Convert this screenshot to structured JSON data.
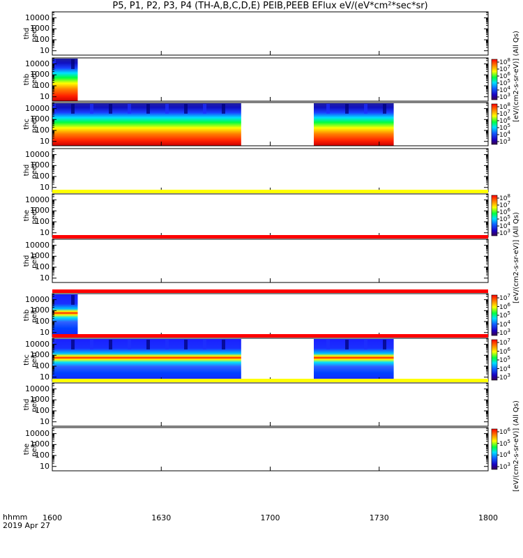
{
  "title": "P5, P1, P2, P3, P4 (TH-A,B,C,D,E) PEIB,PEEB EFlux eV/(eV*cm²*sec*sr)",
  "corner": {
    "line1": "hhmm",
    "line2": "2019 Apr 27"
  },
  "chart_data": {
    "type": "heatmap",
    "x_axis": {
      "ticks": [
        "1600",
        "1630",
        "1700",
        "1730",
        "1800"
      ],
      "range_hhmm": [
        "1600",
        "1800"
      ]
    },
    "y_axis": {
      "scale": "log",
      "ticks": [
        "10000",
        "1000",
        "100",
        "10"
      ]
    },
    "panels": [
      {
        "id": "thd_peeb",
        "label_probe": "thd",
        "label_product": "peeb",
        "data": [],
        "flag_bar": null,
        "cbar": null,
        "units_label": "eV/(cm2-s-sr-eV) (All Qs)"
      },
      {
        "id": "thb_peeb",
        "label_probe": "thb",
        "label_product": "peeb",
        "data": [
          {
            "start": "1600",
            "end": "1607",
            "profile": "electron"
          }
        ],
        "flag_bar": null,
        "cbar": {
          "exponents": [
            "8",
            "7",
            "6",
            "5",
            "4",
            "3"
          ]
        },
        "units_label": "eV/(cm2-s-sr-eV) (All Qs)"
      },
      {
        "id": "thc_peeb",
        "label_probe": "thc",
        "label_product": "peeb",
        "data": [
          {
            "start": "1600",
            "end": "1652",
            "profile": "electron"
          },
          {
            "start": "1712",
            "end": "1734",
            "profile": "electron"
          }
        ],
        "flag_bar": null,
        "cbar": {
          "exponents": [
            "8",
            "7",
            "6",
            "5",
            "4",
            "3"
          ]
        },
        "units_label": "eV/(cm2-s-sr-eV) (All Qs)"
      },
      {
        "id": "thd_peeb_2",
        "label_probe": "thd",
        "label_product": "peeb",
        "data": [],
        "flag_bar": null,
        "cbar": null,
        "units_label": "eV/(cm2-s-sr-eV) (All Qs)"
      },
      {
        "id": "the_peeb",
        "label_probe": "the",
        "label_product": "peeb",
        "data": [],
        "flag_bar": "yellow",
        "cbar": {
          "exponents": [
            "8",
            "7",
            "6",
            "5",
            "4",
            "3"
          ]
        },
        "units_label": "eV/(cm2-s-sr-eV) (All Qs)"
      },
      {
        "id": "thd_peib",
        "label_probe": "thd",
        "label_product": "peib",
        "data": [],
        "flag_bar": "red",
        "cbar": null,
        "units_label": "eV/(cm2-s-sr-eV) (All Qs)"
      },
      {
        "id": "thb_peib",
        "label_probe": "thb",
        "label_product": "peib",
        "data": [
          {
            "start": "1600",
            "end": "1607",
            "profile": "ion"
          }
        ],
        "flag_bar": "red",
        "cbar": {
          "exponents": [
            "7",
            "6",
            "5",
            "4",
            "3"
          ]
        },
        "units_label": "eV/(cm2-s-sr-eV) (All Qs)"
      },
      {
        "id": "thc_peib",
        "label_probe": "thc",
        "label_product": "peib",
        "data": [
          {
            "start": "1600",
            "end": "1652",
            "profile": "ion"
          },
          {
            "start": "1712",
            "end": "1734",
            "profile": "ion"
          }
        ],
        "flag_bar": "red",
        "cbar": {
          "exponents": [
            "7",
            "6",
            "5",
            "4",
            "3"
          ]
        },
        "units_label": "eV/(cm2-s-sr-eV) (All Qs)"
      },
      {
        "id": "thd_peib_2",
        "label_probe": "thd",
        "label_product": "peib",
        "data": [],
        "flag_bar": "yellow",
        "cbar": null,
        "units_label": "eV/(cm2-s-sr-eV) (All Qs)"
      },
      {
        "id": "the_peib",
        "label_probe": "the",
        "label_product": "peib",
        "data": [],
        "flag_bar": null,
        "cbar": {
          "exponents": [
            "6",
            "5",
            "4",
            "3"
          ]
        },
        "units_label": "eV/(cm2-s-sr-eV) (All Qs)"
      }
    ],
    "colors": {
      "flag_red": "#ff0000",
      "flag_yellow": "#ffff00"
    }
  }
}
